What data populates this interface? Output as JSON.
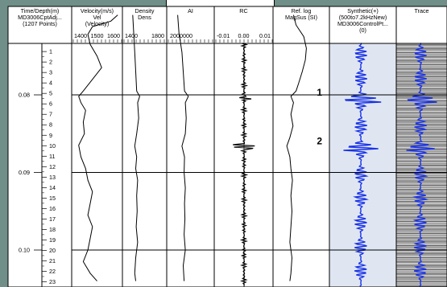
{
  "tracks": [
    {
      "id": "time",
      "header": [
        "Time/Depth(m)",
        "MD3006CptAdj...",
        "(1207 Points)"
      ]
    },
    {
      "id": "vel",
      "header": [
        "Velocity(m/s)",
        "Vel",
        "(Velocity)"
      ],
      "scale": [
        "1400",
        "1500",
        "1600"
      ]
    },
    {
      "id": "den",
      "header": [
        "Density",
        "Dens"
      ],
      "scale": [
        "1400",
        "1800"
      ]
    },
    {
      "id": "ai",
      "header": [
        "AI"
      ],
      "scale": [
        "2000000"
      ]
    },
    {
      "id": "rc",
      "header": [
        "RC"
      ],
      "scale": [
        "-0.01",
        "0.00",
        "0.01"
      ]
    },
    {
      "id": "mag",
      "header": [
        "Ref. log",
        "MagSus (SI)"
      ]
    },
    {
      "id": "syn",
      "header": [
        "Synthetic(+)",
        "(500to7.2kHzNew)",
        "MD3006ControlPt...",
        "(0)"
      ]
    },
    {
      "id": "trace",
      "header": [
        "Trace"
      ]
    }
  ],
  "chart_data": {
    "type": "line",
    "title": "",
    "time_axis": {
      "ticks": [
        {
          "label": "0.08",
          "value": 0.08
        },
        {
          "label": "0.09",
          "value": 0.09
        },
        {
          "label": "0.10",
          "value": 0.1
        }
      ],
      "range": [
        0.065,
        0.104
      ]
    },
    "depth_axis": {
      "labels": [
        "1",
        "2",
        "3",
        "4",
        "5",
        "6",
        "7",
        "8",
        "9",
        "10",
        "11",
        "12",
        "13",
        "14",
        "15",
        "16",
        "17",
        "18",
        "19",
        "20",
        "21",
        "22",
        "23"
      ],
      "range": [
        0,
        23.6
      ]
    },
    "markers": [
      {
        "label": "1",
        "time": 0.0803
      },
      {
        "label": "2",
        "time": 0.0866
      }
    ],
    "horizon_times": [
      0.08,
      0.09,
      0.1
    ],
    "series": [
      {
        "track": "vel",
        "x_range": [
          1400,
          1600
        ],
        "points": [
          [
            0.0697,
            1590
          ],
          [
            0.0705,
            1560
          ],
          [
            0.0712,
            1480
          ],
          [
            0.0722,
            1460
          ],
          [
            0.0735,
            1470
          ],
          [
            0.075,
            1500
          ],
          [
            0.0765,
            1520
          ],
          [
            0.078,
            1480
          ],
          [
            0.0795,
            1440
          ],
          [
            0.0802,
            1420
          ],
          [
            0.081,
            1430
          ],
          [
            0.082,
            1450
          ],
          [
            0.0835,
            1440
          ],
          [
            0.085,
            1445
          ],
          [
            0.0865,
            1420
          ],
          [
            0.088,
            1430
          ],
          [
            0.0895,
            1450
          ],
          [
            0.091,
            1460
          ],
          [
            0.0925,
            1480
          ],
          [
            0.094,
            1470
          ],
          [
            0.0955,
            1460
          ],
          [
            0.097,
            1480
          ],
          [
            0.0985,
            1470
          ],
          [
            0.1,
            1460
          ],
          [
            0.1015,
            1440
          ],
          [
            0.103,
            1470
          ],
          [
            0.104,
            1500
          ]
        ]
      },
      {
        "track": "den",
        "x_range": [
          1400,
          2200
        ],
        "points": [
          [
            0.0697,
            1560
          ],
          [
            0.072,
            1580
          ],
          [
            0.0745,
            1600
          ],
          [
            0.077,
            1620
          ],
          [
            0.0795,
            1640
          ],
          [
            0.0802,
            1700
          ],
          [
            0.081,
            1660
          ],
          [
            0.083,
            1680
          ],
          [
            0.085,
            1640
          ],
          [
            0.0866,
            1600
          ],
          [
            0.088,
            1640
          ],
          [
            0.0895,
            1620
          ],
          [
            0.091,
            1660
          ],
          [
            0.093,
            1640
          ],
          [
            0.095,
            1650
          ],
          [
            0.097,
            1630
          ],
          [
            0.099,
            1660
          ],
          [
            0.101,
            1620
          ],
          [
            0.103,
            1600
          ],
          [
            0.104,
            1620
          ]
        ]
      },
      {
        "track": "ai",
        "x_range": [
          2000000,
          3000000
        ],
        "points": [
          [
            0.0697,
            2200000
          ],
          [
            0.072,
            2230000
          ],
          [
            0.0745,
            2300000
          ],
          [
            0.077,
            2330000
          ],
          [
            0.0795,
            2360000
          ],
          [
            0.0802,
            2450000
          ],
          [
            0.081,
            2380000
          ],
          [
            0.083,
            2400000
          ],
          [
            0.085,
            2380000
          ],
          [
            0.0866,
            2300000
          ],
          [
            0.088,
            2360000
          ],
          [
            0.09,
            2350000
          ],
          [
            0.092,
            2380000
          ],
          [
            0.094,
            2360000
          ],
          [
            0.096,
            2370000
          ],
          [
            0.098,
            2350000
          ],
          [
            0.1,
            2380000
          ],
          [
            0.102,
            2330000
          ],
          [
            0.104,
            2350000
          ]
        ]
      },
      {
        "track": "mag",
        "x_range": [
          0,
          1
        ],
        "points": [
          [
            0.0697,
            0.35
          ],
          [
            0.071,
            0.4
          ],
          [
            0.0725,
            0.55
          ],
          [
            0.074,
            0.6
          ],
          [
            0.0755,
            0.58
          ],
          [
            0.077,
            0.52
          ],
          [
            0.0785,
            0.45
          ],
          [
            0.0795,
            0.4
          ],
          [
            0.0802,
            0.3
          ],
          [
            0.081,
            0.35
          ],
          [
            0.0825,
            0.3
          ],
          [
            0.084,
            0.34
          ],
          [
            0.0855,
            0.28
          ],
          [
            0.0866,
            0.22
          ],
          [
            0.088,
            0.28
          ],
          [
            0.0895,
            0.3
          ],
          [
            0.091,
            0.33
          ],
          [
            0.093,
            0.3
          ],
          [
            0.095,
            0.32
          ],
          [
            0.097,
            0.3
          ],
          [
            0.099,
            0.28
          ],
          [
            0.101,
            0.32
          ],
          [
            0.103,
            0.3
          ],
          [
            0.104,
            0.28
          ]
        ]
      }
    ]
  }
}
